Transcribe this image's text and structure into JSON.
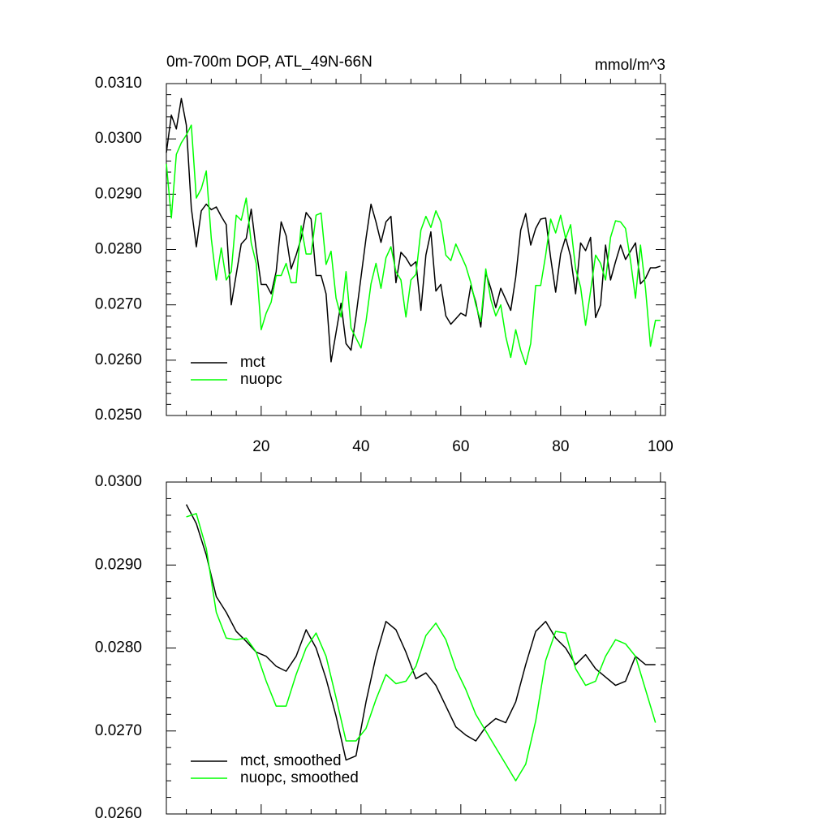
{
  "chart_data": [
    {
      "type": "line",
      "title": "0m-700m DOP, ATL_49N-66N",
      "units": "mmol/m^3",
      "x": [
        1,
        2,
        3,
        4,
        5,
        6,
        7,
        8,
        9,
        10,
        11,
        12,
        13,
        14,
        15,
        16,
        17,
        18,
        19,
        20,
        21,
        22,
        23,
        24,
        25,
        26,
        27,
        28,
        29,
        30,
        31,
        32,
        33,
        34,
        35,
        36,
        37,
        38,
        39,
        40,
        41,
        42,
        43,
        44,
        45,
        46,
        47,
        48,
        49,
        50,
        51,
        52,
        53,
        54,
        55,
        56,
        57,
        58,
        59,
        60,
        61,
        62,
        63,
        64,
        65,
        66,
        67,
        68,
        69,
        70,
        71,
        72,
        73,
        74,
        75,
        76,
        77,
        78,
        79,
        80,
        81,
        82,
        83,
        84,
        85,
        86,
        87,
        88,
        89,
        90,
        91,
        92,
        93,
        94,
        95,
        96,
        97,
        98,
        99,
        100
      ],
      "series": [
        {
          "name": "mct",
          "color": "#000000",
          "values": [
            0.02975,
            0.03043,
            0.03018,
            0.03073,
            0.03025,
            0.02875,
            0.02805,
            0.0287,
            0.02882,
            0.02872,
            0.02877,
            0.0286,
            0.02845,
            0.027,
            0.02755,
            0.0281,
            0.0282,
            0.02873,
            0.028,
            0.02737,
            0.02737,
            0.0272,
            0.0276,
            0.0285,
            0.02825,
            0.02765,
            0.0279,
            0.0282,
            0.02867,
            0.02855,
            0.02753,
            0.02753,
            0.0272,
            0.02597,
            0.0265,
            0.02703,
            0.0263,
            0.02618,
            0.0268,
            0.0275,
            0.0282,
            0.02882,
            0.0285,
            0.02813,
            0.0285,
            0.0286,
            0.0274,
            0.02795,
            0.02785,
            0.0277,
            0.02778,
            0.0269,
            0.0279,
            0.02832,
            0.02725,
            0.02737,
            0.0268,
            0.02665,
            0.02675,
            0.02685,
            0.0268,
            0.02735,
            0.02705,
            0.0266,
            0.02758,
            0.0273,
            0.02695,
            0.0273,
            0.0271,
            0.0269,
            0.0275,
            0.02835,
            0.02865,
            0.02808,
            0.02838,
            0.02855,
            0.02857,
            0.02785,
            0.02723,
            0.02792,
            0.02822,
            0.02787,
            0.0272,
            0.02812,
            0.02798,
            0.02822,
            0.02677,
            0.027,
            0.02808,
            0.02745,
            0.02778,
            0.02808,
            0.02782,
            0.02797,
            0.02812,
            0.02738,
            0.02748,
            0.02767,
            0.02767,
            0.0277
          ]
        },
        {
          "name": "nuopc",
          "color": "#00ff00",
          "values": [
            0.02955,
            0.02857,
            0.02972,
            0.02993,
            0.03007,
            0.03025,
            0.02893,
            0.0291,
            0.02942,
            0.0282,
            0.02745,
            0.02803,
            0.02745,
            0.0276,
            0.02862,
            0.02853,
            0.02893,
            0.02812,
            0.02775,
            0.02655,
            0.02685,
            0.02705,
            0.02753,
            0.02753,
            0.02775,
            0.0274,
            0.0274,
            0.02843,
            0.02792,
            0.02792,
            0.02862,
            0.02866,
            0.02773,
            0.02797,
            0.02712,
            0.02678,
            0.0276,
            0.02658,
            0.0264,
            0.02622,
            0.0267,
            0.02738,
            0.02775,
            0.0273,
            0.02785,
            0.02805,
            0.0276,
            0.02745,
            0.02678,
            0.02745,
            0.02755,
            0.02835,
            0.0286,
            0.0284,
            0.0287,
            0.0285,
            0.0279,
            0.0278,
            0.0281,
            0.0279,
            0.0277,
            0.0274,
            0.027,
            0.0267,
            0.02765,
            0.0271,
            0.0268,
            0.027,
            0.02643,
            0.02605,
            0.02655,
            0.02618,
            0.02592,
            0.0263,
            0.02735,
            0.02735,
            0.0279,
            0.02855,
            0.0283,
            0.02862,
            0.0282,
            0.02845,
            0.02765,
            0.02732,
            0.02663,
            0.02725,
            0.0279,
            0.02775,
            0.02745,
            0.02822,
            0.02852,
            0.0285,
            0.02838,
            0.0278,
            0.02712,
            0.02808,
            0.0273,
            0.02625,
            0.02672,
            0.02672
          ]
        }
      ],
      "xlim": [
        1,
        101
      ],
      "xticks": [
        20,
        40,
        60,
        80,
        100
      ],
      "xtick_labels": true,
      "ylim": [
        0.025,
        0.031
      ],
      "yticks": [
        {
          "value": 0.025,
          "label": "0.0250"
        },
        {
          "value": 0.026,
          "label": "0.0260"
        },
        {
          "value": 0.027,
          "label": "0.0270"
        },
        {
          "value": 0.028,
          "label": "0.0280"
        },
        {
          "value": 0.029,
          "label": "0.0290"
        },
        {
          "value": 0.03,
          "label": "0.0300"
        },
        {
          "value": 0.031,
          "label": "0.0310"
        }
      ],
      "legend": "lower left"
    },
    {
      "type": "line",
      "x": [
        5,
        7,
        9,
        11,
        13,
        15,
        17,
        19,
        21,
        23,
        25,
        27,
        29,
        31,
        33,
        35,
        37,
        39,
        41,
        43,
        45,
        47,
        49,
        51,
        53,
        55,
        57,
        59,
        61,
        63,
        65,
        67,
        69,
        71,
        73,
        75,
        77,
        79,
        81,
        83,
        85,
        87,
        89,
        91,
        93,
        95,
        97,
        99
      ],
      "series": [
        {
          "name": "mct, smoothed",
          "color": "#000000",
          "values": [
            0.02973,
            0.0295,
            0.02912,
            0.02862,
            0.02843,
            0.0282,
            0.02808,
            0.02795,
            0.0279,
            0.02778,
            0.02772,
            0.0279,
            0.02822,
            0.028,
            0.02763,
            0.02718,
            0.02665,
            0.0267,
            0.02735,
            0.0279,
            0.02832,
            0.02822,
            0.02795,
            0.02763,
            0.0277,
            0.02755,
            0.0273,
            0.02705,
            0.02695,
            0.02688,
            0.02705,
            0.02715,
            0.0271,
            0.02735,
            0.0278,
            0.0282,
            0.02832,
            0.02812,
            0.028,
            0.0278,
            0.02792,
            0.02775,
            0.02765,
            0.02755,
            0.0276,
            0.0279,
            0.0278,
            0.0278
          ]
        },
        {
          "name": "nuopc, smoothed",
          "color": "#00ff00",
          "values": [
            0.02958,
            0.02962,
            0.0292,
            0.02843,
            0.02812,
            0.0281,
            0.02812,
            0.02795,
            0.0276,
            0.0273,
            0.0273,
            0.02768,
            0.028,
            0.02818,
            0.0279,
            0.0274,
            0.02688,
            0.02688,
            0.02703,
            0.02738,
            0.02768,
            0.02757,
            0.0276,
            0.02778,
            0.02815,
            0.0283,
            0.0281,
            0.02775,
            0.0275,
            0.0272,
            0.027,
            0.0268,
            0.0266,
            0.0264,
            0.0266,
            0.02712,
            0.02785,
            0.0282,
            0.02818,
            0.02775,
            0.02755,
            0.0276,
            0.0279,
            0.0281,
            0.02805,
            0.0279,
            0.0275,
            0.0271
          ]
        }
      ],
      "xlim": [
        1,
        101
      ],
      "xticks": [
        20,
        40,
        60,
        80,
        100
      ],
      "xtick_labels": false,
      "ylim": [
        0.026,
        0.03
      ],
      "yticks": [
        {
          "value": 0.026,
          "label": "0.0260"
        },
        {
          "value": 0.027,
          "label": "0.0270"
        },
        {
          "value": 0.028,
          "label": "0.0280"
        },
        {
          "value": 0.029,
          "label": "0.0290"
        },
        {
          "value": 0.03,
          "label": "0.0300"
        }
      ],
      "legend": "lower left"
    }
  ]
}
